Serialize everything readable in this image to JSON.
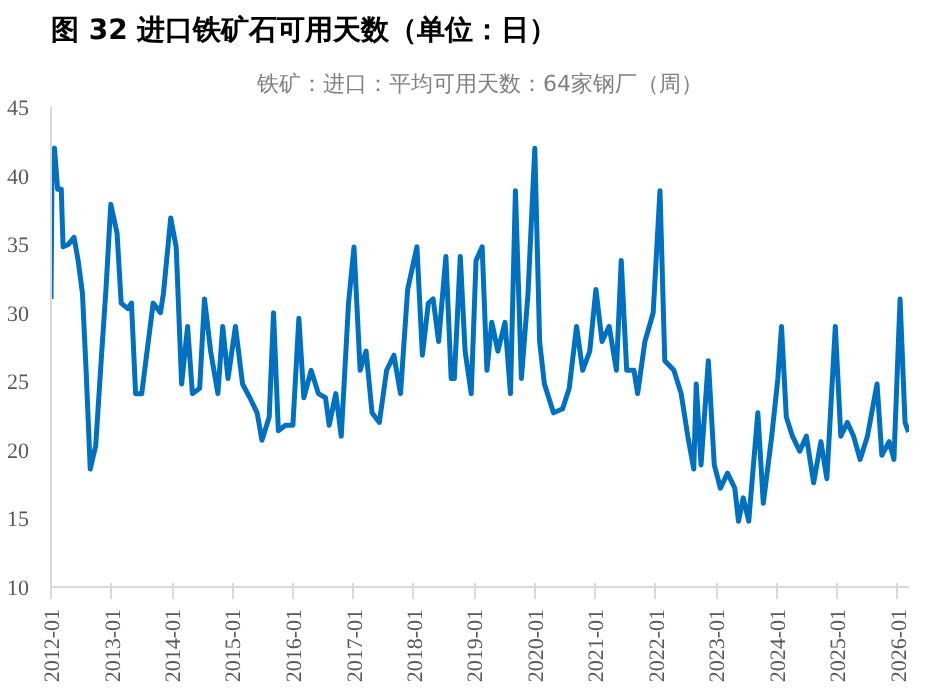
{
  "chart_data": {
    "type": "line",
    "title": "图 32 进口铁矿石可用天数（单位：日）",
    "subtitle": "铁矿：进口：平均可用天数：64家钢厂（周）",
    "series": [
      {
        "color": "#0070c0",
        "x": [
          "2012-01-01",
          "2012-01-08",
          "2012-01-22",
          "2012-02-10",
          "2012-03-03",
          "2012-03-14",
          "2012-04-16",
          "2012-05-19",
          "2012-06-13",
          "2012-07-09",
          "2012-07-31",
          "2012-08-25",
          "2012-09-27",
          "2012-10-30",
          "2012-11-28",
          "2012-12-27",
          "2013-02-03",
          "2013-02-28",
          "2013-04-09",
          "2013-05-01",
          "2013-05-26",
          "2013-07-02",
          "2013-07-27",
          "2013-09-09",
          "2013-10-23",
          "2013-11-10",
          "2013-12-24",
          "2014-01-26",
          "2014-02-28",
          "2014-04-05",
          "2014-05-04",
          "2014-06-17",
          "2014-07-16",
          "2014-08-22",
          "2014-10-05",
          "2014-11-03",
          "2014-12-05",
          "2015-01-19",
          "2015-03-03",
          "2015-04-16",
          "2015-05-30",
          "2015-06-28",
          "2015-08-11",
          "2015-09-06",
          "2015-10-05",
          "2015-11-17",
          "2016-01-01",
          "2016-02-06",
          "2016-03-07",
          "2016-04-20",
          "2016-06-03",
          "2016-07-16",
          "2016-08-07",
          "2016-09-16",
          "2016-10-19",
          "2016-12-02",
          "2017-01-04",
          "2017-02-10",
          "2017-03-18",
          "2017-04-23",
          "2017-06-06",
          "2017-07-20",
          "2017-09-02",
          "2017-10-12",
          "2017-11-24",
          "2018-01-19",
          "2018-02-21",
          "2018-03-29",
          "2018-04-27",
          "2018-05-30",
          "2018-07-13",
          "2018-08-14",
          "2018-09-02",
          "2018-10-08",
          "2018-11-06",
          "2018-12-13",
          "2019-01-11",
          "2019-02-17",
          "2019-03-18",
          "2019-04-16",
          "2019-05-23",
          "2019-07-05",
          "2019-08-07",
          "2019-09-06",
          "2019-10-12",
          "2019-11-21",
          "2020-01-01",
          "2020-01-30",
          "2020-02-28",
          "2020-04-23",
          "2020-06-17",
          "2020-07-27",
          "2020-09-09",
          "2020-10-16",
          "2020-11-28",
          "2021-01-04",
          "2021-02-10",
          "2021-03-25",
          "2021-05-08",
          "2021-06-06",
          "2021-07-09",
          "2021-08-22",
          "2021-09-13",
          "2021-10-27",
          "2021-12-16",
          "2022-01-26",
          "2022-02-24",
          "2022-04-20",
          "2022-06-03",
          "2022-07-13",
          "2022-08-18",
          "2022-09-02",
          "2022-10-01",
          "2022-11-14",
          "2022-12-20",
          "2023-01-26",
          "2023-03-10",
          "2023-04-23",
          "2023-05-15",
          "2023-06-13",
          "2023-07-16",
          "2023-09-09",
          "2023-10-12",
          "2023-12-02",
          "2024-01-08",
          "2024-01-30",
          "2024-02-28",
          "2024-04-05",
          "2024-05-19",
          "2024-06-28",
          "2024-08-11",
          "2024-09-24",
          "2024-10-30",
          "2024-12-20",
          "2025-01-22",
          "2025-03-03",
          "2025-04-09",
          "2025-05-19",
          "2025-07-02",
          "2025-08-29",
          "2025-09-27",
          "2025-11-10",
          "2025-12-09",
          "2026-01-15",
          "2026-02-14",
          "2026-03-07"
        ],
        "values": [
          31,
          41.7,
          42,
          39,
          39,
          34.8,
          35,
          35.5,
          33.8,
          31.4,
          25.8,
          18.6,
          20.3,
          26.5,
          31.7,
          37.9,
          35.8,
          30.7,
          30.3,
          30.7,
          24.1,
          24.1,
          26.5,
          30.7,
          30,
          31.4,
          36.9,
          34.8,
          24.8,
          29,
          24.1,
          24.5,
          31,
          27.2,
          24.1,
          29,
          25.2,
          29,
          24.8,
          23.8,
          22.7,
          20.7,
          22.4,
          30,
          21.4,
          21.8,
          21.8,
          29.6,
          23.8,
          25.8,
          24.1,
          23.8,
          21.8,
          24.1,
          21,
          30.7,
          34.8,
          25.8,
          27.2,
          22.7,
          22,
          25.8,
          26.9,
          24.1,
          31.7,
          34.8,
          26.9,
          30.7,
          31,
          27.9,
          34.1,
          25.2,
          25.2,
          34.1,
          27.2,
          24.1,
          33.8,
          34.8,
          25.8,
          29.3,
          27.2,
          29.3,
          24.1,
          38.9,
          25.2,
          31.4,
          42,
          27.9,
          24.8,
          22.7,
          23,
          24.5,
          29,
          25.8,
          27.2,
          31.7,
          27.9,
          29,
          25.8,
          33.8,
          25.8,
          25.8,
          24.1,
          27.9,
          30,
          38.9,
          26.5,
          25.8,
          24.1,
          21,
          18.6,
          24.8,
          18.9,
          26.5,
          18.9,
          17.2,
          18.3,
          17.2,
          14.8,
          16.5,
          14.8,
          22.7,
          16.1,
          21,
          25.2,
          29,
          22.4,
          21,
          19.9,
          21,
          17.6,
          20.6,
          17.9,
          29,
          21,
          22,
          21,
          19.3,
          21,
          24.8,
          19.6,
          20.6,
          19.3,
          31,
          22,
          21.3
        ]
      }
    ],
    "xlim": [
      "2012-01-01",
      "2026-03-10"
    ],
    "xticks": [
      "2012-01",
      "2013-01",
      "2014-01",
      "2015-01",
      "2016-01",
      "2017-01",
      "2018-01",
      "2019-01",
      "2020-01",
      "2021-01",
      "2022-01",
      "2023-01",
      "2024-01",
      "2025-01",
      "2026-01"
    ],
    "ylim": [
      10,
      45
    ],
    "yticks": [
      10,
      15,
      20,
      25,
      30,
      35,
      40,
      45
    ],
    "grid": false,
    "line_style": "solid",
    "marker": "none"
  }
}
